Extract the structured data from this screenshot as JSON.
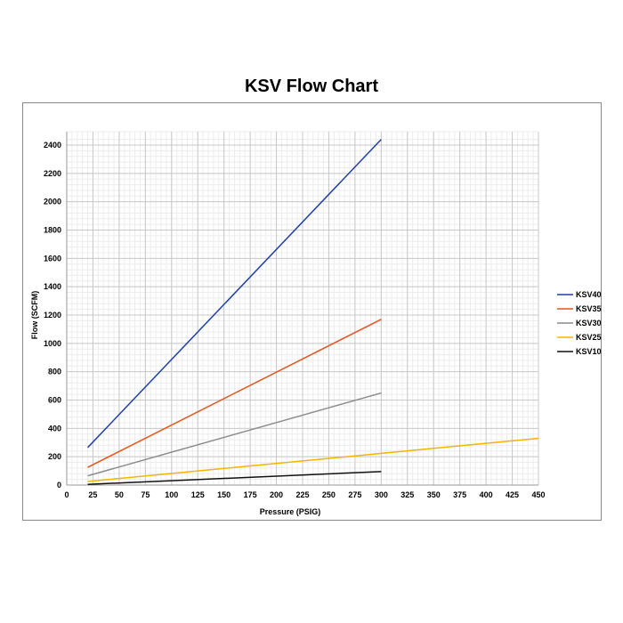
{
  "chart_data": {
    "type": "line",
    "title": "KSV Flow Chart",
    "xlabel": "Pressure (PSIG)",
    "ylabel": "Flow (SCFM)",
    "xlim": [
      0,
      450
    ],
    "ylim": [
      0,
      2400
    ],
    "xticks": [
      0,
      25,
      50,
      75,
      100,
      125,
      150,
      175,
      200,
      225,
      250,
      275,
      300,
      325,
      350,
      375,
      400,
      425,
      450
    ],
    "yticks": [
      0,
      200,
      400,
      600,
      800,
      1000,
      1200,
      1400,
      1600,
      1800,
      2000,
      2200,
      2400
    ],
    "grid": true,
    "legend": "right",
    "series": [
      {
        "name": "KSV40",
        "color": "#1f3fa8",
        "x": [
          20,
          300
        ],
        "y": [
          265,
          2440
        ]
      },
      {
        "name": "KSV35",
        "color": "#e8521c",
        "x": [
          20,
          300
        ],
        "y": [
          125,
          1170
        ]
      },
      {
        "name": "KSV30",
        "color": "#8c8c8c",
        "x": [
          20,
          300
        ],
        "y": [
          65,
          650
        ]
      },
      {
        "name": "KSV25",
        "color": "#f5b400",
        "x": [
          20,
          450
        ],
        "y": [
          25,
          330
        ]
      },
      {
        "name": "KSV10",
        "color": "#111111",
        "x": [
          20,
          300
        ],
        "y": [
          5,
          95
        ]
      }
    ]
  }
}
